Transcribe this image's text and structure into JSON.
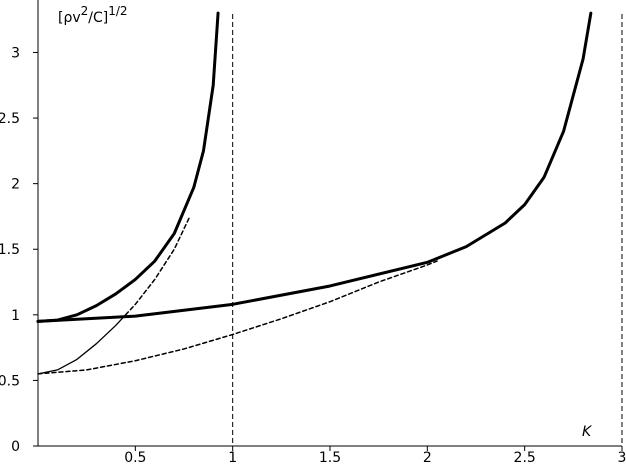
{
  "chart_data": {
    "type": "line",
    "ylabel_parts": [
      "[ρv",
      "2",
      "/C]",
      "1/2"
    ],
    "xlabel": "K",
    "xlim": [
      0,
      3
    ],
    "ylim": [
      0,
      3.4
    ],
    "xticks": [
      0.5,
      1,
      1.5,
      2,
      2.5,
      3
    ],
    "yticks": [
      0,
      0.5,
      1,
      1.5,
      2,
      2.5,
      3
    ],
    "vlines": [
      1,
      3
    ],
    "color": "#000000",
    "series": [
      {
        "x": [
          0,
          0.1,
          0.2,
          0.3,
          0.4,
          0.5,
          0.6,
          0.7,
          0.8,
          0.85,
          0.9,
          0.925
        ],
        "values": [
          0.95,
          0.96,
          1.0,
          1.07,
          1.16,
          1.27,
          1.41,
          1.62,
          1.97,
          2.25,
          2.75,
          3.3
        ],
        "width": 3,
        "dashed": false
      },
      {
        "x": [
          0,
          0.1,
          0.2,
          0.3,
          0.4,
          0.45
        ],
        "values": [
          0.55,
          0.58,
          0.66,
          0.78,
          0.92,
          1.0
        ],
        "width": 1.3,
        "dashed": false
      },
      {
        "x": [
          0.45,
          0.5,
          0.6,
          0.7,
          0.78
        ],
        "values": [
          1.0,
          1.08,
          1.27,
          1.5,
          1.75
        ],
        "width": 1.5,
        "dashed": true
      },
      {
        "x": [
          0,
          0.5,
          1,
          1.5,
          2,
          2.2,
          2.4,
          2.5,
          2.6,
          2.7,
          2.8,
          2.84
        ],
        "values": [
          0.95,
          0.99,
          1.08,
          1.22,
          1.4,
          1.52,
          1.7,
          1.84,
          2.05,
          2.4,
          2.95,
          3.3
        ],
        "width": 3,
        "dashed": false
      },
      {
        "x": [
          0,
          0.25,
          0.5,
          0.75,
          1,
          1.25,
          1.5,
          1.75,
          2,
          2.05
        ],
        "values": [
          0.55,
          0.58,
          0.65,
          0.74,
          0.85,
          0.97,
          1.1,
          1.25,
          1.38,
          1.41
        ],
        "width": 1.5,
        "dashed": true
      }
    ]
  }
}
